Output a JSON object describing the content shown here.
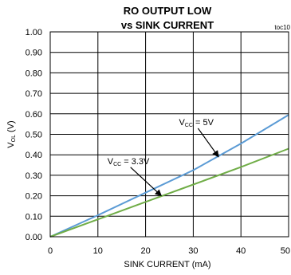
{
  "chart_data": {
    "type": "line",
    "title": "RO OUTPUT LOW",
    "subtitle": "vs SINK CURRENT",
    "tag": "toc10",
    "xlabel": "SINK CURRENT (mA)",
    "ylabel": {
      "main": "V",
      "sub": "OL",
      "suffix": " (V)"
    },
    "xlim": [
      0,
      50
    ],
    "ylim": [
      0,
      1.0
    ],
    "xticks": [
      0,
      10,
      20,
      30,
      40,
      50
    ],
    "xtick_labels": [
      "0",
      "10",
      "20",
      "30",
      "40",
      "50"
    ],
    "yticks": [
      0,
      0.1,
      0.2,
      0.3,
      0.4,
      0.5,
      0.6,
      0.7,
      0.8,
      0.9,
      1.0
    ],
    "ytick_labels": [
      "0.00",
      "0.10",
      "0.20",
      "0.30",
      "0.40",
      "0.50",
      "0.60",
      "0.70",
      "0.80",
      "0.90",
      "1.00"
    ],
    "grid": true,
    "series": [
      {
        "color": "#5b9bd5",
        "x": [
          0,
          10,
          20,
          30,
          40,
          50
        ],
        "y": [
          0,
          0.105,
          0.215,
          0.325,
          0.455,
          0.595
        ]
      },
      {
        "color": "#70ad47",
        "x": [
          0,
          10,
          20,
          30,
          40,
          50
        ],
        "y": [
          0,
          0.085,
          0.17,
          0.255,
          0.34,
          0.43
        ]
      }
    ],
    "annotations": [
      {
        "main": "V",
        "sub": "CC",
        "suffix": " = 5V",
        "x": 27.0,
        "y": 0.545,
        "arrow_to": [
          35.3,
          0.39
        ]
      },
      {
        "main": "V",
        "sub": "CC",
        "suffix": " = 3.3V",
        "x": 12.0,
        "y": 0.355,
        "arrow_to": [
          23.3,
          0.2
        ]
      }
    ]
  }
}
